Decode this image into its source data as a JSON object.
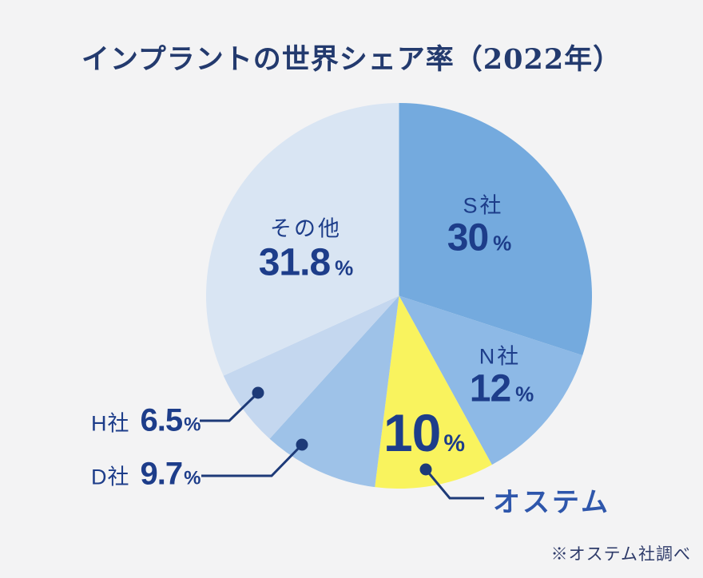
{
  "title": "インプラントの世界シェア率（2022年）",
  "footnote": "※オステム社調べ",
  "chart_data": {
    "type": "pie",
    "title": "インプラントの世界シェア率（2022年）",
    "unit": "%",
    "start_angle_deg": 0,
    "direction": "clockwise",
    "legend_position": "labels-on-chart",
    "background_color": "#f3f3f4",
    "label_color": "#1d3d8a",
    "callout_color": "#1d3a78",
    "segments": [
      {
        "id": "s",
        "label": "S社",
        "value": 30,
        "value_text": "30",
        "color": "#74aade"
      },
      {
        "id": "n",
        "label": "N社",
        "value": 12,
        "value_text": "12",
        "color": "#8db9e6"
      },
      {
        "id": "osstem",
        "label": "オステム",
        "value": 10,
        "value_text": "10",
        "color": "#f9f35e"
      },
      {
        "id": "d",
        "label": "D社",
        "value": 9.7,
        "value_text": "9.7",
        "color": "#9ec2e8"
      },
      {
        "id": "h",
        "label": "H社",
        "value": 6.5,
        "value_text": "6.5",
        "color": "#c4d7ef"
      },
      {
        "id": "other",
        "label": "その他",
        "value": 31.8,
        "value_text": "31.8",
        "color": "#d9e5f3"
      }
    ]
  }
}
